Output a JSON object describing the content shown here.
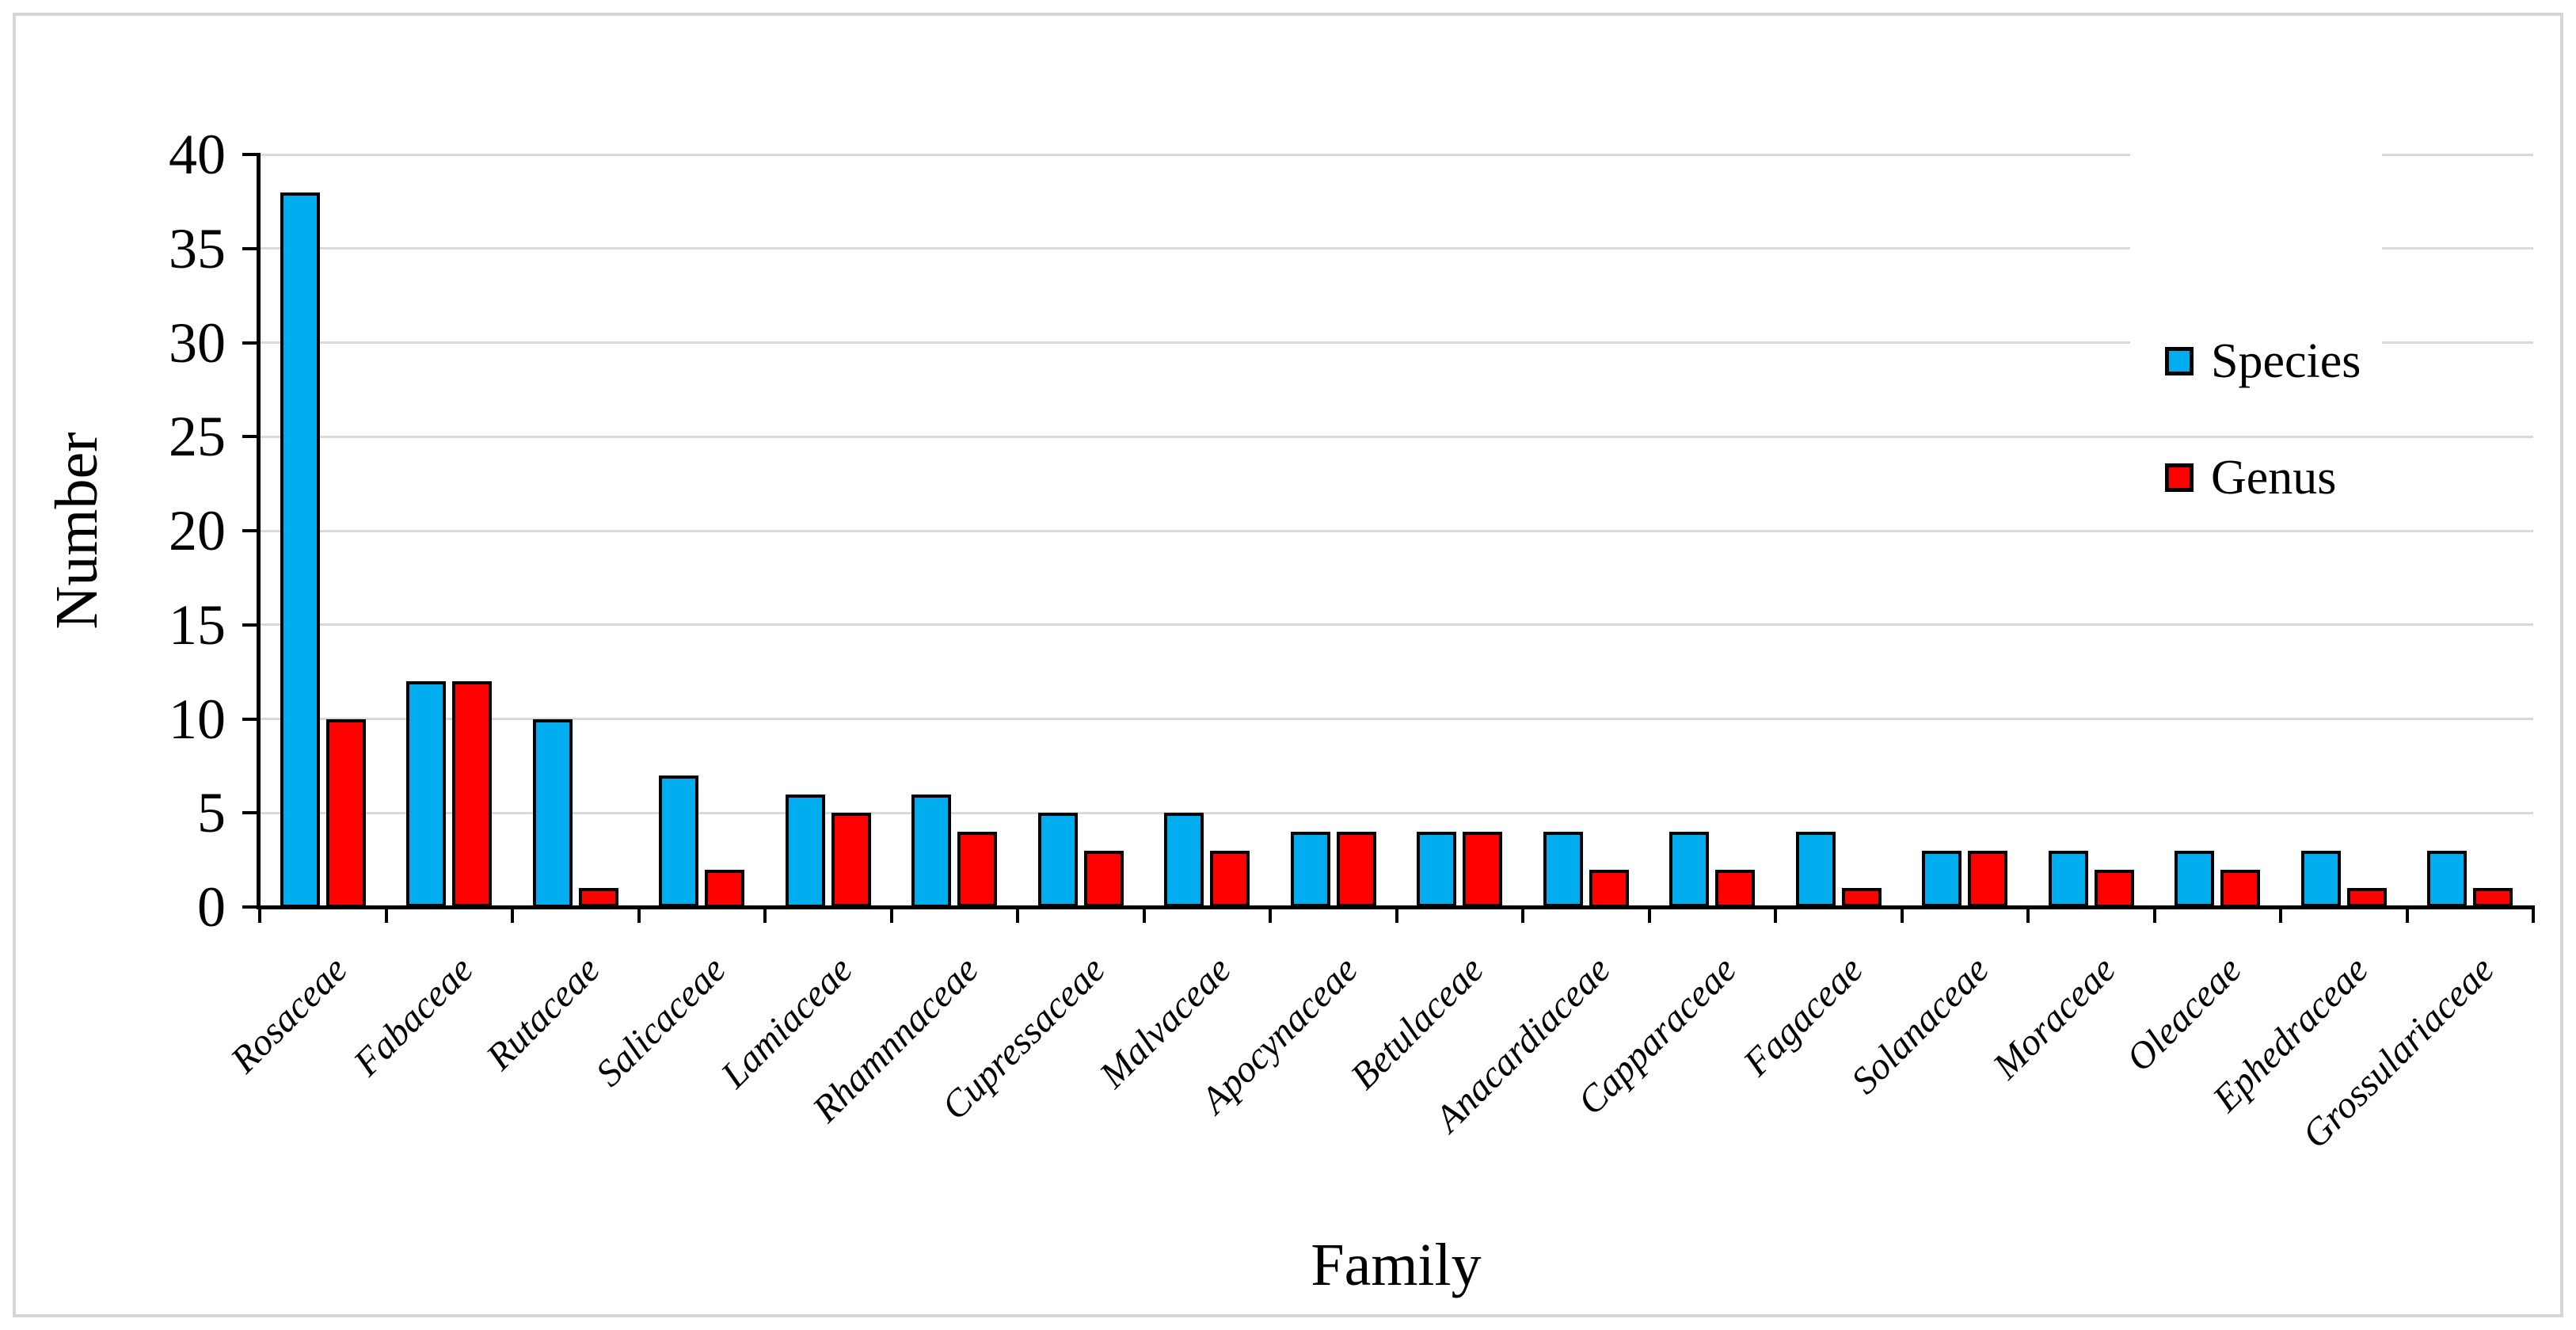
{
  "chart_data": {
    "type": "bar",
    "title": "",
    "xlabel": "Family",
    "ylabel": "Number",
    "ylim": [
      0,
      40
    ],
    "ytick_step": 5,
    "yticks": [
      0,
      5,
      10,
      15,
      20,
      25,
      30,
      35,
      40
    ],
    "grid": true,
    "legend_position": "top-right-inside",
    "categories": [
      "Rosaceae",
      "Fabaceae",
      "Rutaceae",
      "Salicaceae",
      "Lamiaceae",
      "Rhamnnaceae",
      "Cupressaceae",
      "Malvaceae",
      "Apocynaceae",
      "Betulaceae",
      "Anacardiaceae",
      "Capparaceae",
      "Fagaceae",
      "Solanaceae",
      "Moraceae",
      "Oleaceae",
      "Ephedraceae",
      "Grossulariaceae"
    ],
    "series": [
      {
        "name": "Species",
        "color": "#00AEEF",
        "values": [
          38,
          12,
          10,
          7,
          6,
          6,
          5,
          5,
          4,
          4,
          4,
          4,
          4,
          3,
          3,
          3,
          3,
          3
        ]
      },
      {
        "name": "Genus",
        "color": "#FF0000",
        "values": [
          10,
          12,
          1,
          2,
          5,
          4,
          3,
          3,
          4,
          4,
          2,
          2,
          1,
          3,
          2,
          2,
          1,
          1
        ]
      }
    ],
    "colors": {
      "gridline": "#d9d9d9",
      "axis": "#000000",
      "frame_border": "#d6d6d6",
      "background": "#ffffff"
    }
  }
}
